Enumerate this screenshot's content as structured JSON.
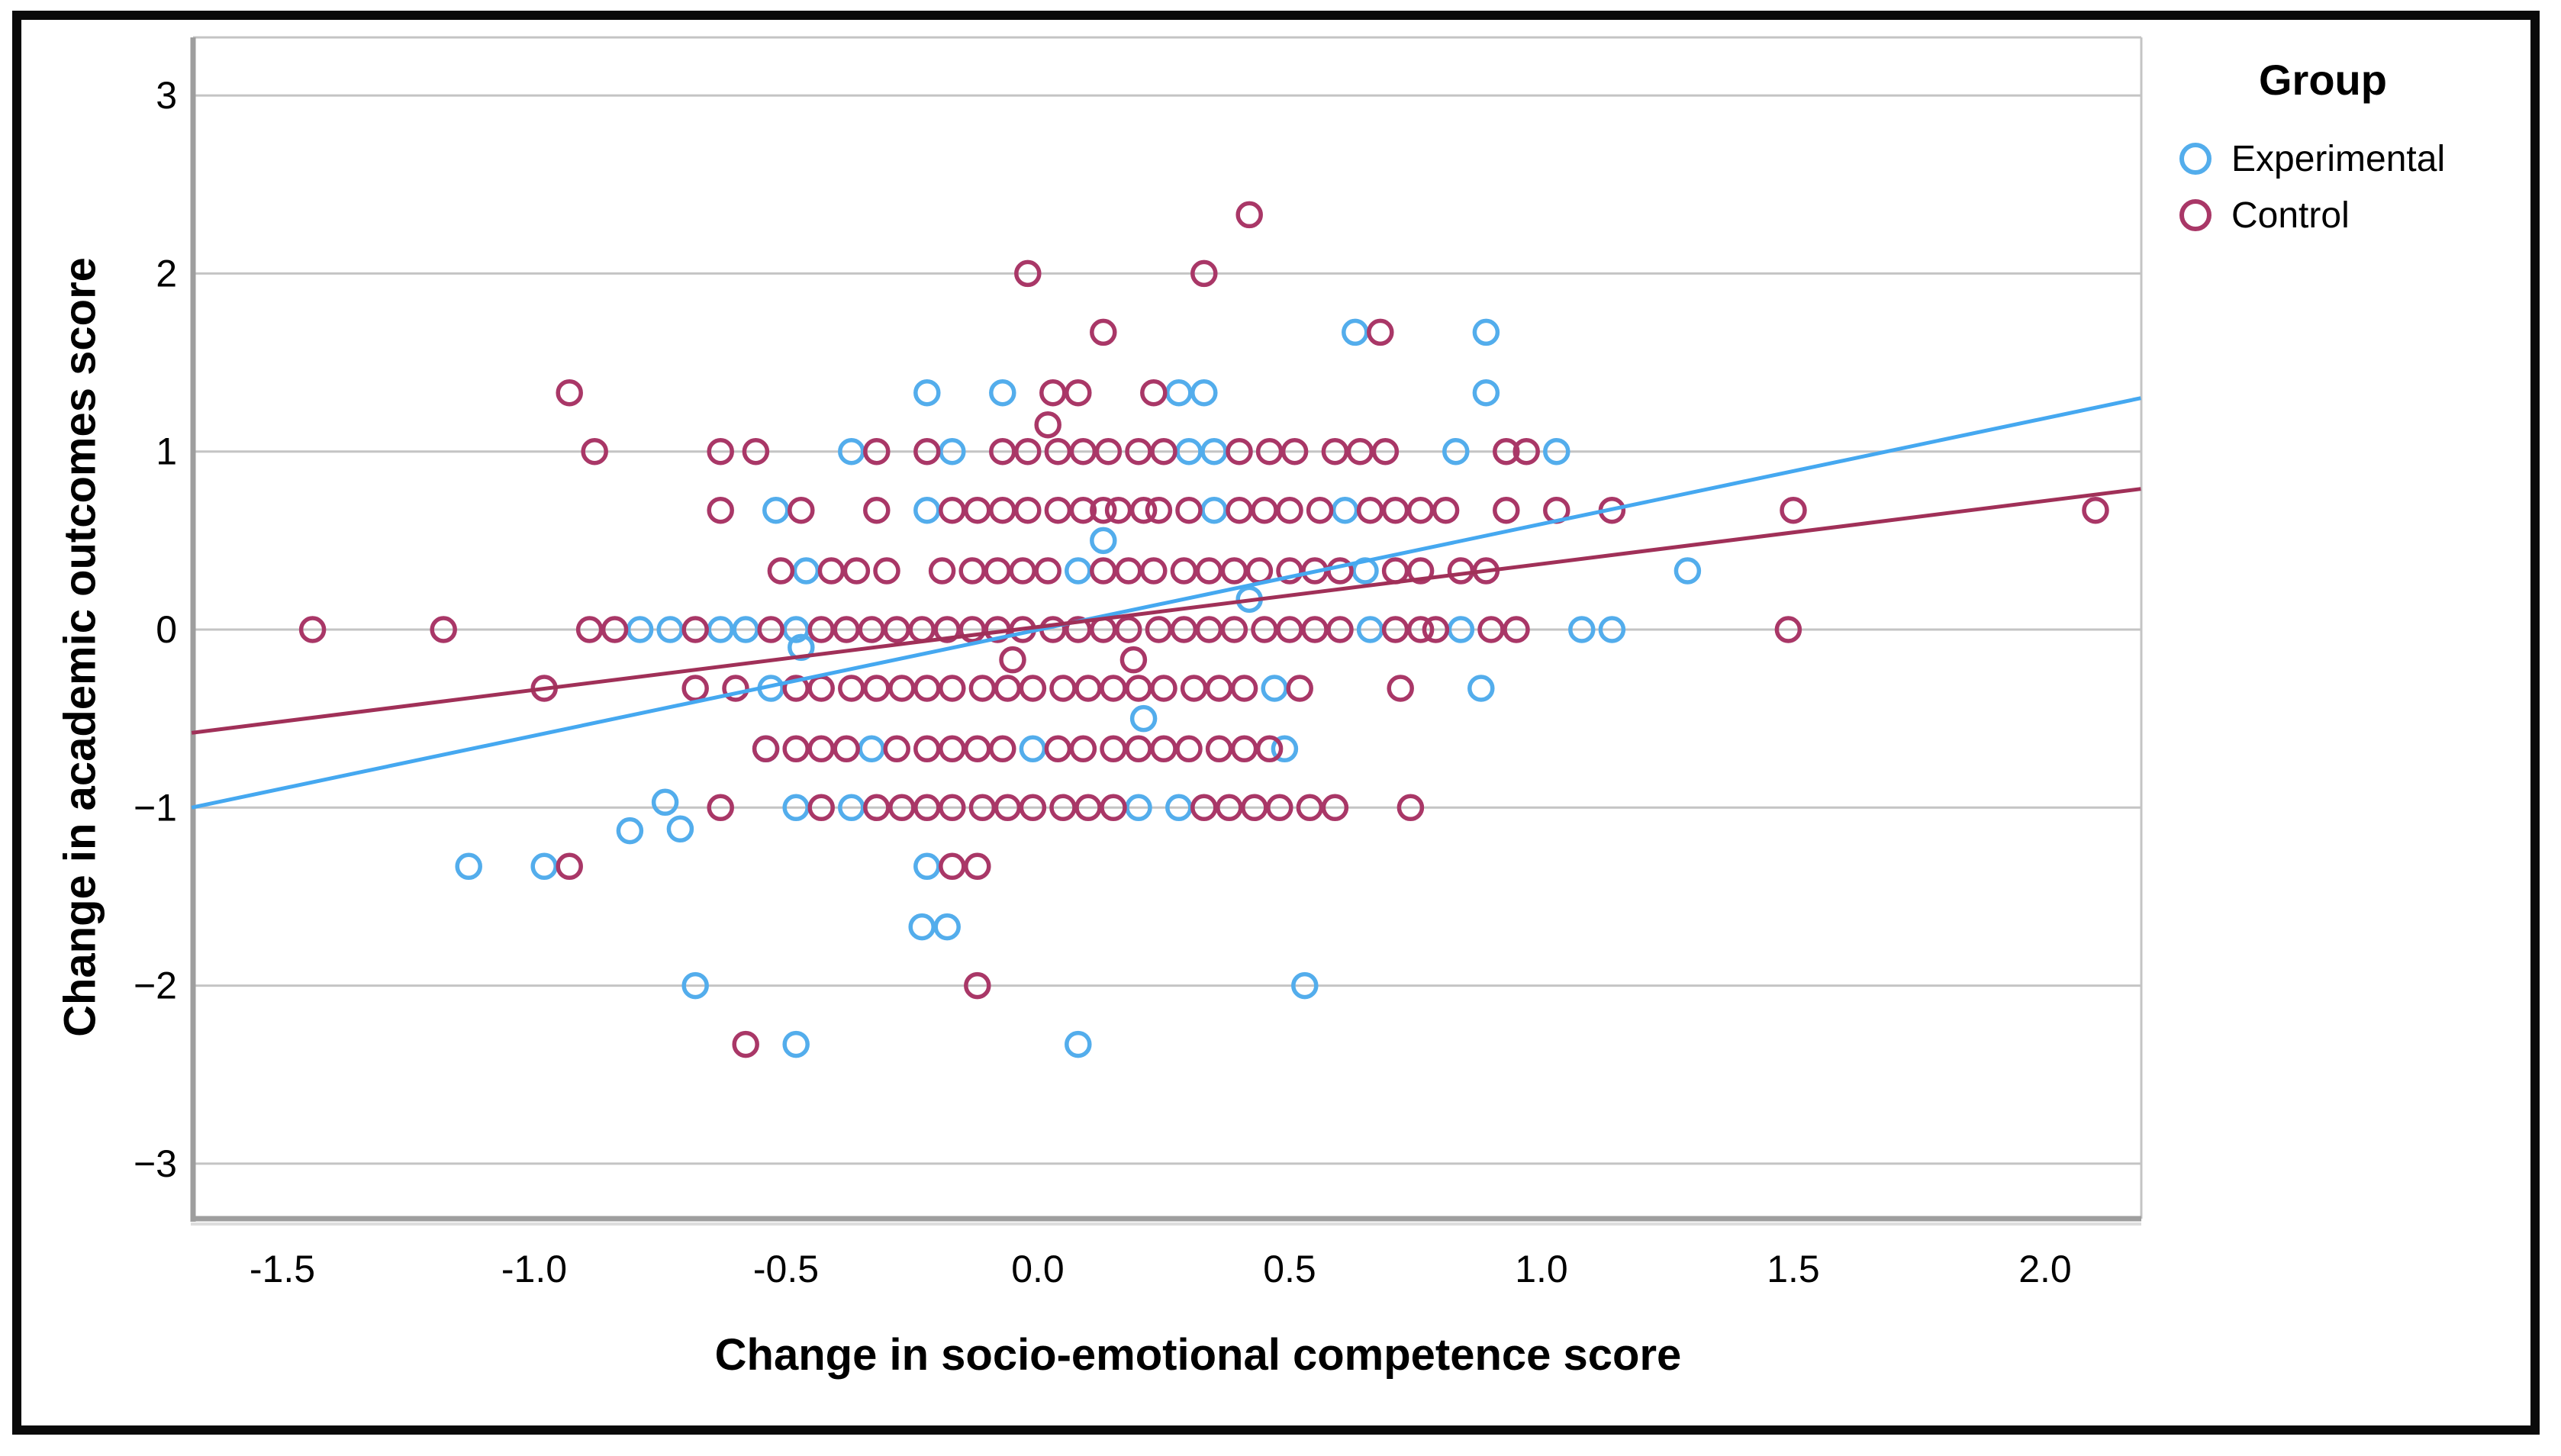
{
  "chart_data": {
    "type": "scatter",
    "title": "",
    "xlabel": "Change in socio-emotional competence score",
    "ylabel": "Change in academic outcomes score",
    "legend_title": "Group",
    "legend_position": "top-right-outside",
    "grid": "horizontal-only",
    "xlim": [
      -1.68,
      2.19
    ],
    "ylim": [
      -3.32,
      3.33
    ],
    "x_ticks": {
      "values": [
        -1.5,
        -1.0,
        -0.5,
        0.0,
        0.5,
        1.0,
        1.5,
        2.0
      ],
      "labels": [
        "-1.5",
        "-1.0",
        "-0.5",
        "0.0",
        "0.5",
        "1.0",
        "1.5",
        "2.0"
      ]
    },
    "y_ticks": {
      "values": [
        3,
        2,
        1,
        0,
        -1,
        -2,
        -3
      ],
      "labels": [
        "3",
        "2",
        "1",
        "0",
        "−1",
        "−2",
        "−3"
      ]
    },
    "colors": {
      "experimental": "#53ADEC",
      "control": "#A93767",
      "experimental_line": "#45A8F0",
      "control_line": "#A03058",
      "gridline": "#C4C4C4",
      "axis_line": "#9E9E9E"
    },
    "series": [
      {
        "name": "Experimental",
        "marker": "open-circle",
        "color": "#53ADEC",
        "points": [
          [
            0.63,
            1.67
          ],
          [
            0.89,
            1.67
          ],
          [
            -0.22,
            1.33
          ],
          [
            -0.07,
            1.33
          ],
          [
            0.28,
            1.33
          ],
          [
            0.33,
            1.33
          ],
          [
            0.89,
            1.33
          ],
          [
            -0.37,
            1
          ],
          [
            -0.17,
            1
          ],
          [
            0.3,
            1
          ],
          [
            0.35,
            1
          ],
          [
            0.83,
            1
          ],
          [
            1.03,
            1
          ],
          [
            -0.52,
            0.67
          ],
          [
            -0.22,
            0.67
          ],
          [
            0.35,
            0.67
          ],
          [
            0.61,
            0.67
          ],
          [
            0.13,
            0.5
          ],
          [
            -0.46,
            0.33
          ],
          [
            0.08,
            0.33
          ],
          [
            0.65,
            0.33
          ],
          [
            1.29,
            0.33
          ],
          [
            0.42,
            0.17
          ],
          [
            -0.79,
            0
          ],
          [
            -0.73,
            0
          ],
          [
            -0.63,
            0
          ],
          [
            -0.58,
            0
          ],
          [
            -0.48,
            0
          ],
          [
            0.66,
            0
          ],
          [
            0.84,
            0
          ],
          [
            1.08,
            0
          ],
          [
            1.14,
            0
          ],
          [
            -0.47,
            -0.1
          ],
          [
            -0.53,
            -0.33
          ],
          [
            0.47,
            -0.33
          ],
          [
            0.88,
            -0.33
          ],
          [
            0.21,
            -0.5
          ],
          [
            -0.54,
            -0.67
          ],
          [
            -0.33,
            -0.67
          ],
          [
            -0.01,
            -0.67
          ],
          [
            0.49,
            -0.67
          ],
          [
            -0.74,
            -0.97
          ],
          [
            -0.48,
            -1
          ],
          [
            -0.37,
            -1
          ],
          [
            0.2,
            -1
          ],
          [
            0.28,
            -1
          ],
          [
            -0.81,
            -1.13
          ],
          [
            -0.71,
            -1.12
          ],
          [
            -1.13,
            -1.33
          ],
          [
            -0.98,
            -1.33
          ],
          [
            -0.22,
            -1.33
          ],
          [
            -0.23,
            -1.67
          ],
          [
            -0.18,
            -1.67
          ],
          [
            -0.68,
            -2
          ],
          [
            0.53,
            -2
          ],
          [
            -0.48,
            -2.33
          ],
          [
            0.08,
            -2.33
          ]
        ]
      },
      {
        "name": "Control",
        "marker": "open-circle",
        "color": "#A93767",
        "points": [
          [
            0.42,
            2.33
          ],
          [
            -0.02,
            2
          ],
          [
            0.33,
            2
          ],
          [
            0.13,
            1.67
          ],
          [
            0.68,
            1.67
          ],
          [
            -0.93,
            1.33
          ],
          [
            0.03,
            1.33
          ],
          [
            0.08,
            1.33
          ],
          [
            0.23,
            1.33
          ],
          [
            0.02,
            1.15
          ],
          [
            -0.88,
            1
          ],
          [
            -0.63,
            1
          ],
          [
            -0.56,
            1
          ],
          [
            -0.32,
            1
          ],
          [
            -0.22,
            1
          ],
          [
            -0.07,
            1
          ],
          [
            -0.02,
            1
          ],
          [
            0.04,
            1
          ],
          [
            0.09,
            1
          ],
          [
            0.14,
            1
          ],
          [
            0.2,
            1
          ],
          [
            0.25,
            1
          ],
          [
            0.4,
            1
          ],
          [
            0.46,
            1
          ],
          [
            0.51,
            1
          ],
          [
            0.59,
            1
          ],
          [
            0.64,
            1
          ],
          [
            0.69,
            1
          ],
          [
            0.93,
            1
          ],
          [
            0.97,
            1
          ],
          [
            -0.63,
            0.67
          ],
          [
            -0.47,
            0.67
          ],
          [
            -0.32,
            0.67
          ],
          [
            -0.17,
            0.67
          ],
          [
            -0.12,
            0.67
          ],
          [
            -0.07,
            0.67
          ],
          [
            -0.02,
            0.67
          ],
          [
            0.04,
            0.67
          ],
          [
            0.09,
            0.67
          ],
          [
            0.13,
            0.67
          ],
          [
            0.16,
            0.67
          ],
          [
            0.21,
            0.67
          ],
          [
            0.24,
            0.67
          ],
          [
            0.3,
            0.67
          ],
          [
            0.4,
            0.67
          ],
          [
            0.45,
            0.67
          ],
          [
            0.5,
            0.67
          ],
          [
            0.56,
            0.67
          ],
          [
            0.66,
            0.67
          ],
          [
            0.71,
            0.67
          ],
          [
            0.76,
            0.67
          ],
          [
            0.81,
            0.67
          ],
          [
            0.93,
            0.67
          ],
          [
            1.03,
            0.67
          ],
          [
            1.14,
            0.67
          ],
          [
            1.5,
            0.67
          ],
          [
            2.1,
            0.67
          ],
          [
            -0.51,
            0.33
          ],
          [
            -0.41,
            0.33
          ],
          [
            -0.36,
            0.33
          ],
          [
            -0.3,
            0.33
          ],
          [
            -0.19,
            0.33
          ],
          [
            -0.13,
            0.33
          ],
          [
            -0.08,
            0.33
          ],
          [
            -0.03,
            0.33
          ],
          [
            0.02,
            0.33
          ],
          [
            0.13,
            0.33
          ],
          [
            0.18,
            0.33
          ],
          [
            0.23,
            0.33
          ],
          [
            0.29,
            0.33
          ],
          [
            0.34,
            0.33
          ],
          [
            0.39,
            0.33
          ],
          [
            0.44,
            0.33
          ],
          [
            0.5,
            0.33
          ],
          [
            0.55,
            0.33
          ],
          [
            0.6,
            0.33
          ],
          [
            0.71,
            0.33
          ],
          [
            0.76,
            0.33
          ],
          [
            0.84,
            0.33
          ],
          [
            0.89,
            0.33
          ],
          [
            -1.44,
            0
          ],
          [
            -1.18,
            0
          ],
          [
            -0.89,
            0
          ],
          [
            -0.84,
            0
          ],
          [
            -0.68,
            0
          ],
          [
            -0.53,
            0
          ],
          [
            -0.43,
            0
          ],
          [
            -0.38,
            0
          ],
          [
            -0.33,
            0
          ],
          [
            -0.28,
            0
          ],
          [
            -0.23,
            0
          ],
          [
            -0.18,
            0
          ],
          [
            -0.13,
            0
          ],
          [
            -0.08,
            0
          ],
          [
            -0.03,
            0
          ],
          [
            0.03,
            0
          ],
          [
            0.08,
            0
          ],
          [
            0.13,
            0
          ],
          [
            0.18,
            0
          ],
          [
            0.24,
            0
          ],
          [
            0.29,
            0
          ],
          [
            0.34,
            0
          ],
          [
            0.39,
            0
          ],
          [
            0.45,
            0
          ],
          [
            0.5,
            0
          ],
          [
            0.55,
            0
          ],
          [
            0.6,
            0
          ],
          [
            0.71,
            0
          ],
          [
            0.76,
            0
          ],
          [
            0.79,
            0
          ],
          [
            0.9,
            0
          ],
          [
            0.95,
            0
          ],
          [
            1.49,
            0
          ],
          [
            -0.05,
            -0.17
          ],
          [
            0.19,
            -0.17
          ],
          [
            -0.98,
            -0.33
          ],
          [
            -0.68,
            -0.33
          ],
          [
            -0.6,
            -0.33
          ],
          [
            -0.48,
            -0.33
          ],
          [
            -0.43,
            -0.33
          ],
          [
            -0.37,
            -0.33
          ],
          [
            -0.32,
            -0.33
          ],
          [
            -0.27,
            -0.33
          ],
          [
            -0.22,
            -0.33
          ],
          [
            -0.17,
            -0.33
          ],
          [
            -0.11,
            -0.33
          ],
          [
            -0.06,
            -0.33
          ],
          [
            -0.01,
            -0.33
          ],
          [
            0.05,
            -0.33
          ],
          [
            0.1,
            -0.33
          ],
          [
            0.15,
            -0.33
          ],
          [
            0.2,
            -0.33
          ],
          [
            0.25,
            -0.33
          ],
          [
            0.31,
            -0.33
          ],
          [
            0.36,
            -0.33
          ],
          [
            0.41,
            -0.33
          ],
          [
            0.52,
            -0.33
          ],
          [
            0.72,
            -0.33
          ],
          [
            -0.54,
            -0.67
          ],
          [
            -0.48,
            -0.67
          ],
          [
            -0.43,
            -0.67
          ],
          [
            -0.38,
            -0.67
          ],
          [
            -0.28,
            -0.67
          ],
          [
            -0.22,
            -0.67
          ],
          [
            -0.17,
            -0.67
          ],
          [
            -0.12,
            -0.67
          ],
          [
            -0.07,
            -0.67
          ],
          [
            0.04,
            -0.67
          ],
          [
            0.09,
            -0.67
          ],
          [
            0.15,
            -0.67
          ],
          [
            0.2,
            -0.67
          ],
          [
            0.25,
            -0.67
          ],
          [
            0.3,
            -0.67
          ],
          [
            0.36,
            -0.67
          ],
          [
            0.41,
            -0.67
          ],
          [
            0.46,
            -0.67
          ],
          [
            -0.63,
            -1
          ],
          [
            -0.43,
            -1
          ],
          [
            -0.32,
            -1
          ],
          [
            -0.27,
            -1
          ],
          [
            -0.22,
            -1
          ],
          [
            -0.17,
            -1
          ],
          [
            -0.11,
            -1
          ],
          [
            -0.06,
            -1
          ],
          [
            -0.01,
            -1
          ],
          [
            0.05,
            -1
          ],
          [
            0.1,
            -1
          ],
          [
            0.15,
            -1
          ],
          [
            0.33,
            -1
          ],
          [
            0.38,
            -1
          ],
          [
            0.43,
            -1
          ],
          [
            0.48,
            -1
          ],
          [
            0.54,
            -1
          ],
          [
            0.59,
            -1
          ],
          [
            0.74,
            -1
          ],
          [
            -0.93,
            -1.33
          ],
          [
            -0.17,
            -1.33
          ],
          [
            -0.12,
            -1.33
          ],
          [
            -0.12,
            -2
          ],
          [
            -0.58,
            -2.33
          ]
        ]
      }
    ],
    "fit_lines": [
      {
        "group": "Experimental",
        "color": "#45A8F0",
        "x1": -1.68,
        "y1": -1.0,
        "x2": 2.19,
        "y2": 1.3,
        "slope": 0.59,
        "intercept": 0.0
      },
      {
        "group": "Control",
        "color": "#A03058",
        "x1": -1.68,
        "y1": -0.58,
        "x2": 2.19,
        "y2": 0.79,
        "slope": 0.35,
        "intercept": 0.01
      }
    ]
  },
  "legend": {
    "title": "Group",
    "items": [
      {
        "label": "Experimental",
        "color": "#53ADEC"
      },
      {
        "label": "Control",
        "color": "#A93767"
      }
    ]
  }
}
